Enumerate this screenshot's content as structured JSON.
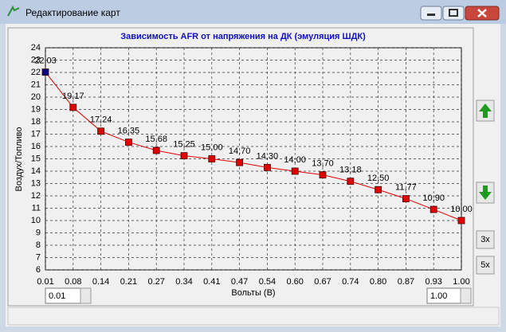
{
  "window": {
    "title": "Редактирование карт"
  },
  "chart_data": {
    "type": "line",
    "title": "Зависимость AFR от напряжения на ДК (эмуляция ШДК)",
    "x_label": "Вольты (В)",
    "y_label": "Воздух/Топливо",
    "categories": [
      "0.01",
      "0.08",
      "0.14",
      "0.21",
      "0.27",
      "0.34",
      "0.41",
      "0.47",
      "0.54",
      "0.60",
      "0.67",
      "0.74",
      "0.80",
      "0.87",
      "0.93",
      "1.00"
    ],
    "values": [
      22.03,
      19.17,
      17.24,
      16.35,
      15.68,
      15.25,
      15.0,
      14.7,
      14.3,
      14.0,
      13.7,
      13.18,
      12.5,
      11.77,
      10.9,
      10.0
    ],
    "value_labels": [
      "22,03",
      "19,17",
      "17,24",
      "16,35",
      "15,68",
      "15,25",
      "15,00",
      "14,70",
      "14,30",
      "14,00",
      "13,70",
      "13,18",
      "12,50",
      "11,77",
      "10,90",
      "10,00"
    ],
    "color": "#e00000",
    "marker_color": "#e00000",
    "selected_marker_color": "#000080",
    "selected_index": 0,
    "ylim": [
      6,
      24
    ],
    "yticks": [
      6,
      7,
      8,
      9,
      10,
      11,
      12,
      13,
      14,
      15,
      16,
      17,
      18,
      19,
      20,
      21,
      22,
      23,
      24
    ],
    "grid": true
  },
  "controls": {
    "min_input": "0.01",
    "max_input": "1.00",
    "zoom_3": "3x",
    "zoom_5": "5x"
  }
}
